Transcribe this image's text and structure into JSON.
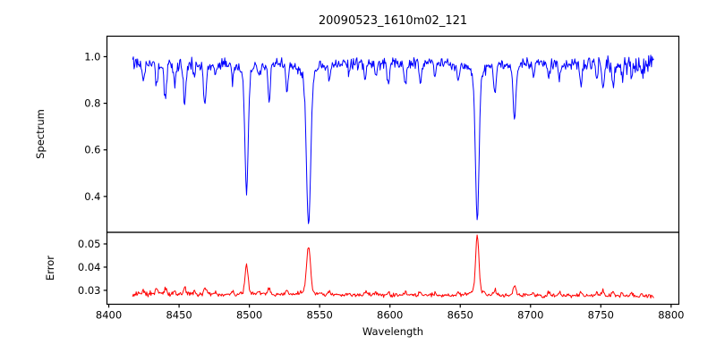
{
  "chart_data": [
    {
      "type": "line",
      "title": "20090523_1610m02_121",
      "xlabel": "Wavelength",
      "ylabel": "Spectrum",
      "color": "#0000ff",
      "xlim": [
        8398.7,
        8805.5
      ],
      "ylim": [
        0.246,
        1.088
      ],
      "xticks": [
        "8400",
        "8450",
        "8500",
        "8550",
        "8600",
        "8650",
        "8700",
        "8750",
        "8800"
      ],
      "yticks": [
        "0.4",
        "0.6",
        "0.8",
        "1.0"
      ],
      "x_start": 8417,
      "x_end": 8787.5,
      "step": 0.5,
      "continuum": 0.975,
      "noise_sigma": 0.012,
      "seed": 7,
      "absorption_lines": [
        {
          "center": 8424.8,
          "depth": 0.075,
          "width": 0.7
        },
        {
          "center": 8434.0,
          "depth": 0.1,
          "width": 0.7
        },
        {
          "center": 8440.2,
          "depth": 0.165,
          "width": 0.8
        },
        {
          "center": 8446.8,
          "depth": 0.09,
          "width": 0.7
        },
        {
          "center": 8454.0,
          "depth": 0.185,
          "width": 0.8
        },
        {
          "center": 8461.0,
          "depth": 0.06,
          "width": 0.6
        },
        {
          "center": 8468.4,
          "depth": 0.17,
          "width": 0.9
        },
        {
          "center": 8476.0,
          "depth": 0.05,
          "width": 0.6
        },
        {
          "center": 8488.0,
          "depth": 0.065,
          "width": 0.7
        },
        {
          "center": 8498.0,
          "depth": 0.555,
          "width": 1.15
        },
        {
          "center": 8507.0,
          "depth": 0.06,
          "width": 0.6
        },
        {
          "center": 8514.1,
          "depth": 0.16,
          "width": 0.8
        },
        {
          "center": 8526.7,
          "depth": 0.115,
          "width": 0.8
        },
        {
          "center": 8542.1,
          "depth": 0.695,
          "width": 1.45
        },
        {
          "center": 8556.8,
          "depth": 0.075,
          "width": 0.7
        },
        {
          "center": 8571.0,
          "depth": 0.05,
          "width": 0.6
        },
        {
          "center": 8582.3,
          "depth": 0.08,
          "width": 0.7
        },
        {
          "center": 8590.0,
          "depth": 0.06,
          "width": 0.6
        },
        {
          "center": 8598.8,
          "depth": 0.09,
          "width": 0.7
        },
        {
          "center": 8611.0,
          "depth": 0.085,
          "width": 0.7
        },
        {
          "center": 8621.6,
          "depth": 0.09,
          "width": 0.7
        },
        {
          "center": 8632.0,
          "depth": 0.05,
          "width": 0.6
        },
        {
          "center": 8648.5,
          "depth": 0.07,
          "width": 0.8
        },
        {
          "center": 8662.1,
          "depth": 0.675,
          "width": 1.25
        },
        {
          "center": 8674.7,
          "depth": 0.135,
          "width": 0.8
        },
        {
          "center": 8688.6,
          "depth": 0.245,
          "width": 0.9
        },
        {
          "center": 8702.0,
          "depth": 0.05,
          "width": 0.6
        },
        {
          "center": 8713.0,
          "depth": 0.065,
          "width": 0.7
        },
        {
          "center": 8720.5,
          "depth": 0.075,
          "width": 0.7
        },
        {
          "center": 8736.0,
          "depth": 0.09,
          "width": 0.8
        },
        {
          "center": 8747.0,
          "depth": 0.07,
          "width": 0.7
        },
        {
          "center": 8751.5,
          "depth": 0.115,
          "width": 0.8
        },
        {
          "center": 8758.5,
          "depth": 0.105,
          "width": 0.7
        },
        {
          "center": 8765.0,
          "depth": 0.075,
          "width": 0.7
        },
        {
          "center": 8772.0,
          "depth": 0.06,
          "width": 0.7
        },
        {
          "center": 8779.0,
          "depth": 0.055,
          "width": 0.7
        }
      ]
    },
    {
      "type": "line",
      "ylabel": "Error",
      "color": "#ff0000",
      "ylim": [
        0.024,
        0.055
      ],
      "yticks": [
        "0.03",
        "0.04",
        "0.05"
      ],
      "baseline": 0.0283,
      "baseline_slope": -2e-06,
      "noise_sigma": 0.00042,
      "line_factor": 0.018,
      "peaks": [
        {
          "center": 8498.0,
          "height": 0.0131,
          "width": 1.0
        },
        {
          "center": 8542.1,
          "height": 0.021,
          "width": 1.3
        },
        {
          "center": 8662.1,
          "height": 0.0262,
          "width": 1.1
        }
      ]
    }
  ]
}
